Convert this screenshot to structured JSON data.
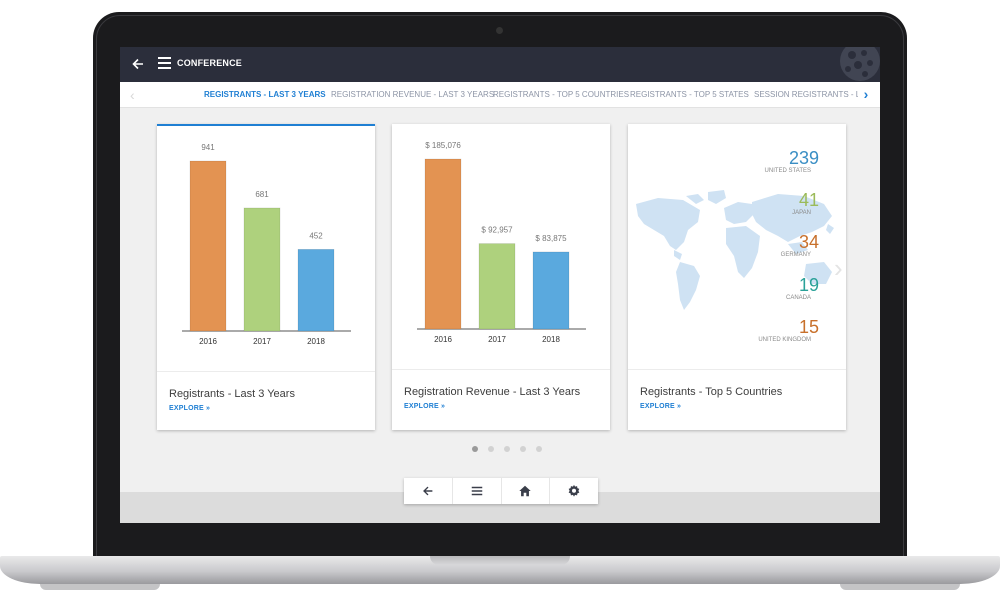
{
  "app": {
    "title": "CONFERENCE"
  },
  "tabs": [
    {
      "label": "REGISTRANTS - LAST 3 YEARS",
      "active": true
    },
    {
      "label": "REGISTRATION REVENUE - LAST 3 YEARS",
      "active": false
    },
    {
      "label": "REGISTRANTS - TOP 5 COUNTRIES",
      "active": false
    },
    {
      "label": "REGISTRANTS - TOP 5 STATES",
      "active": false
    },
    {
      "label": "SESSION REGISTRANTS - LA",
      "active": false
    }
  ],
  "cards": [
    {
      "title": "Registrants - Last 3 Years",
      "explore": "EXPLORE »"
    },
    {
      "title": "Registration Revenue - Last 3 Years",
      "explore": "EXPLORE »"
    },
    {
      "title": "Registrants - Top 5 Countries",
      "explore": "EXPLORE »"
    }
  ],
  "colors": {
    "orange": "#e39352",
    "green": "#aed17d",
    "blue": "#5aa9de",
    "accent": "#1f7fd3",
    "topbar": "#2b2e3b"
  },
  "chart_data": [
    {
      "type": "bar",
      "title": "Registrants - Last 3 Years",
      "categories": [
        "2016",
        "2017",
        "2018"
      ],
      "values": [
        941,
        681,
        452
      ],
      "value_labels": [
        "941",
        "681",
        "452"
      ],
      "ylim": [
        0,
        941
      ]
    },
    {
      "type": "bar",
      "title": "Registration Revenue - Last 3 Years",
      "categories": [
        "2016",
        "2017",
        "2018"
      ],
      "values": [
        185076,
        92957,
        83875
      ],
      "value_labels": [
        "$ 185,076",
        "$ 92,957",
        "$ 83,875"
      ],
      "ylim": [
        0,
        185076
      ]
    }
  ],
  "countries": [
    {
      "value": "239",
      "name": "UNITED STATES",
      "color": "#3a8ec4"
    },
    {
      "value": "41",
      "name": "JAPAN",
      "color": "#9bbb59"
    },
    {
      "value": "34",
      "name": "GERMANY",
      "color": "#c8702b"
    },
    {
      "value": "19",
      "name": "CANADA",
      "color": "#2aa198"
    },
    {
      "value": "15",
      "name": "UNITED KINGDOM",
      "color": "#c8702b"
    }
  ],
  "icons": {
    "back": "arrow-left-icon",
    "menu": "hamburger-icon",
    "home": "home-icon",
    "settings": "gear-icon"
  },
  "pagination": {
    "count": 5,
    "active": 0
  }
}
